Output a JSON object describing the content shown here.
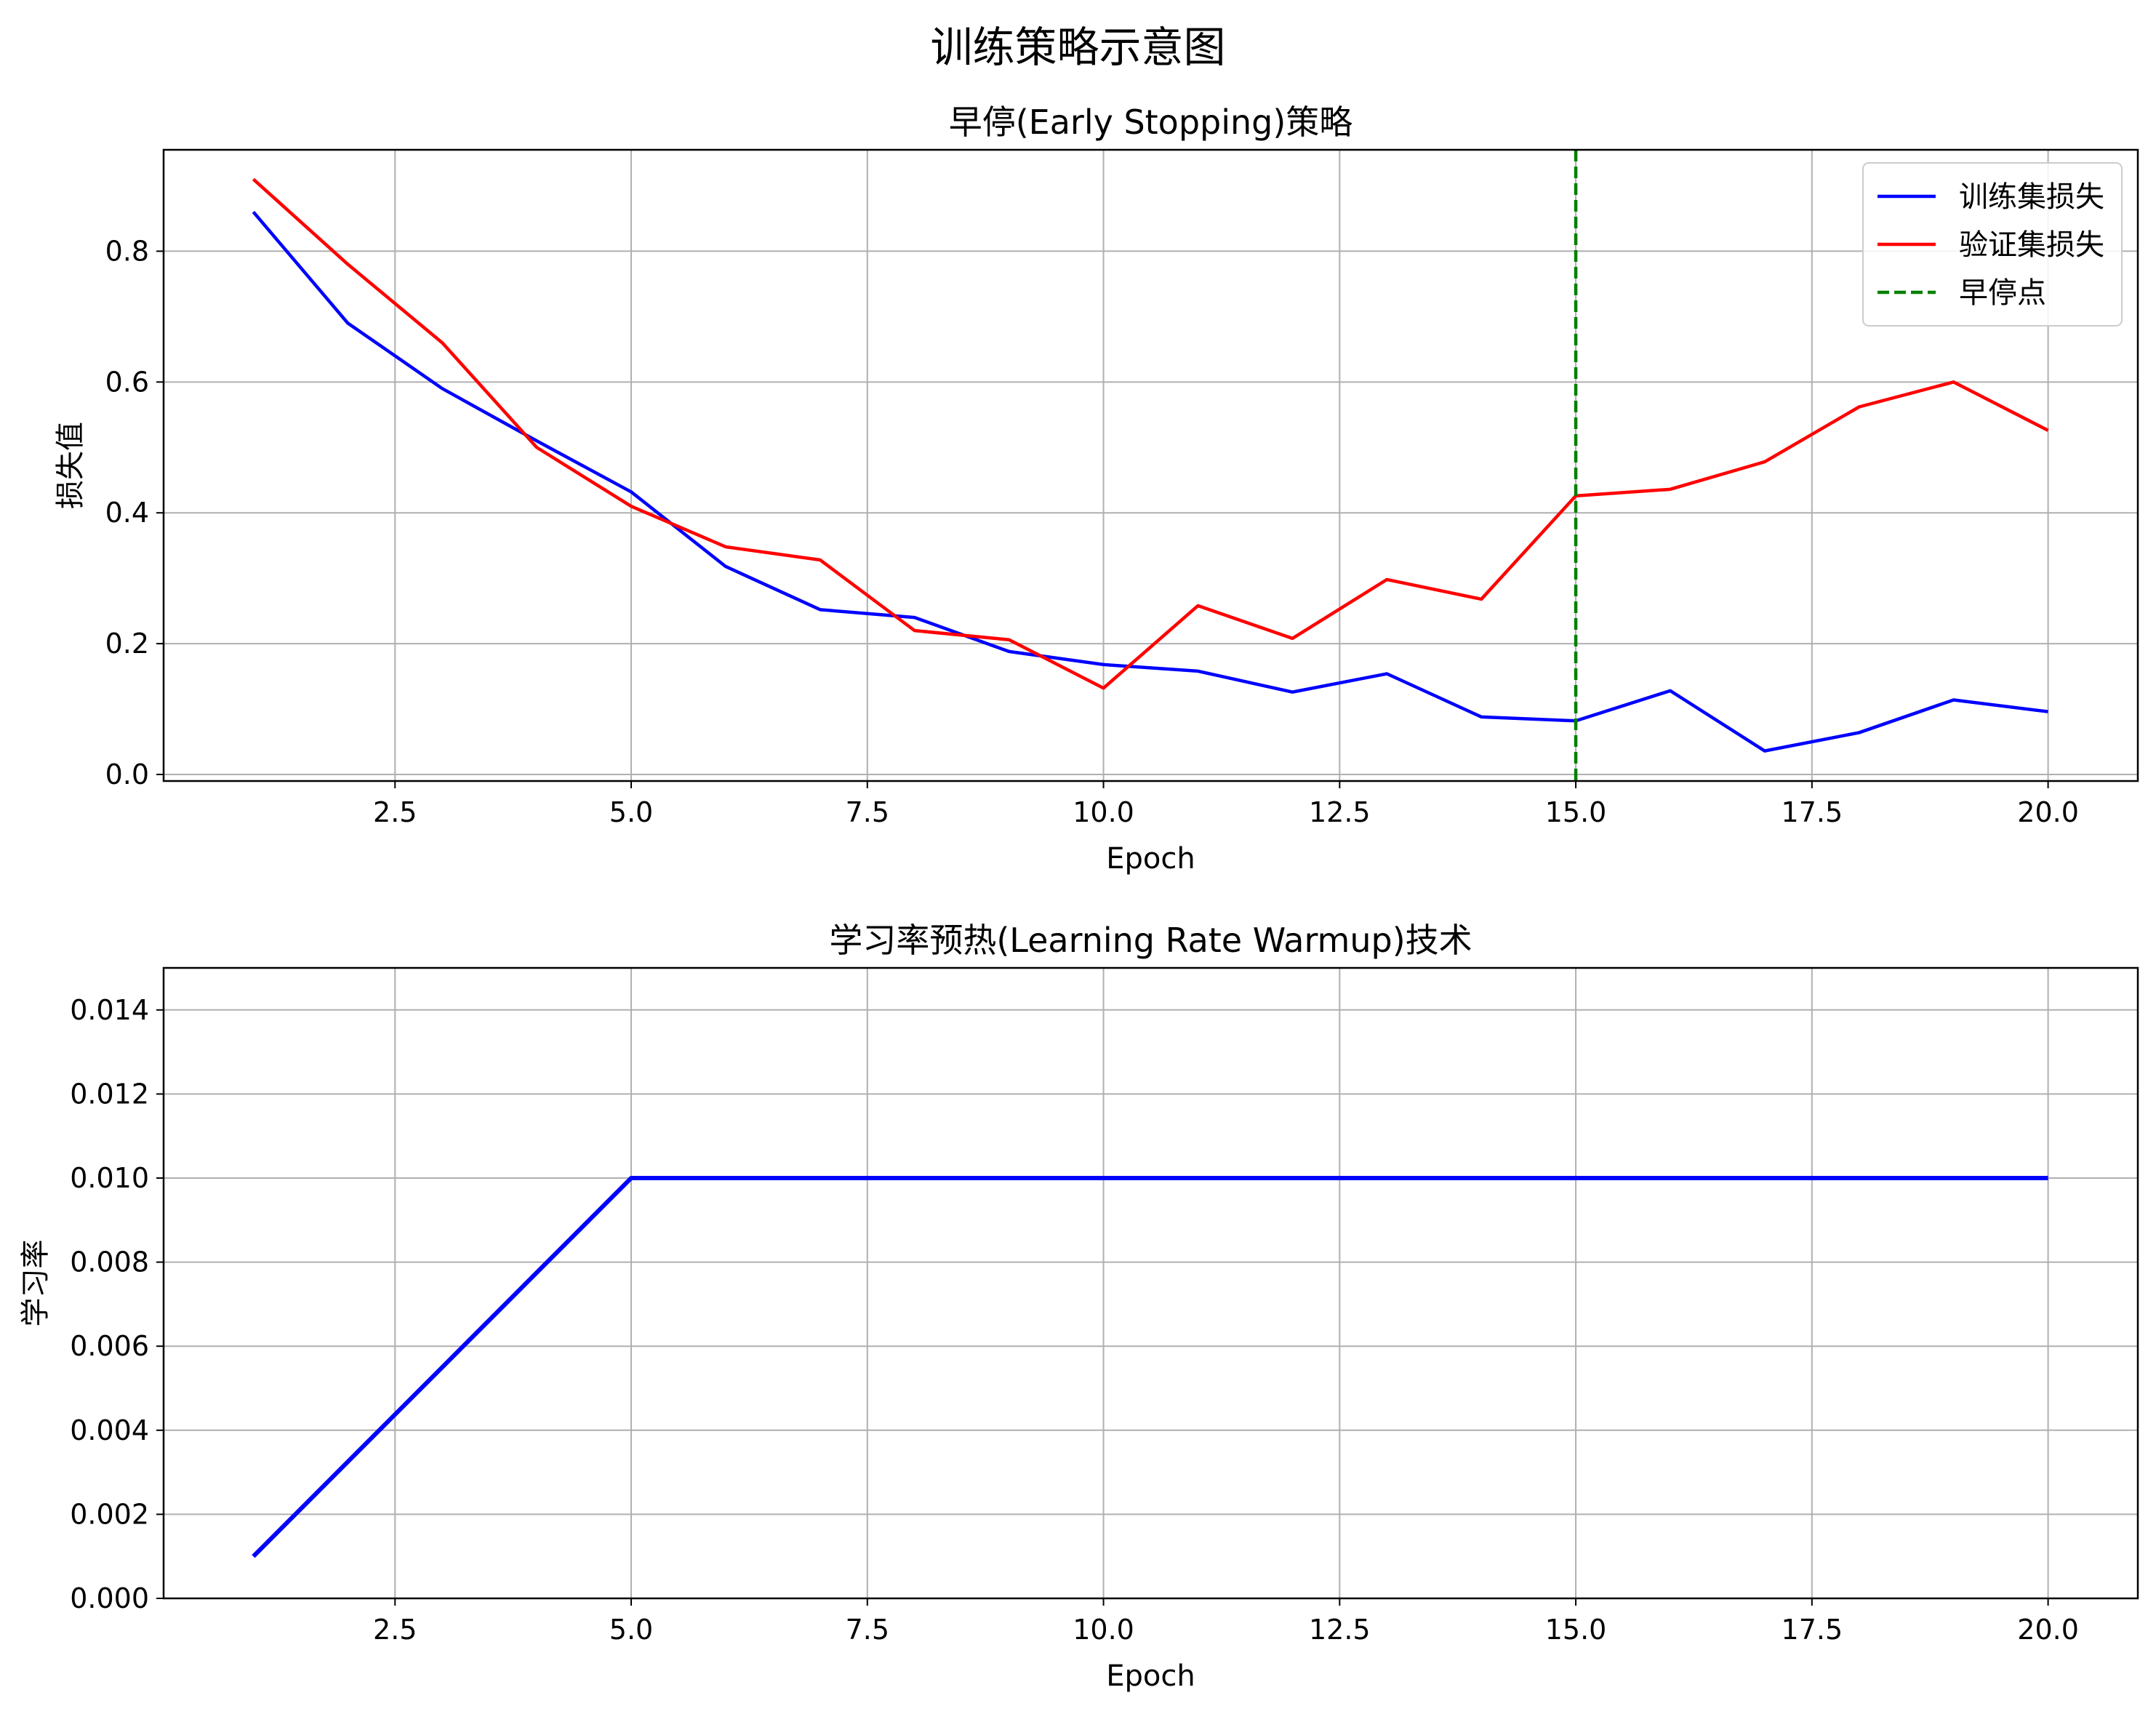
{
  "figure_title": "训练策略示意图",
  "colors": {
    "train": "#0000ff",
    "val": "#ff0000",
    "stop": "#008000",
    "grid": "#b0b0b0"
  },
  "chart_data": [
    {
      "type": "line",
      "title": "早停(Early Stopping)策略",
      "xlabel": "Epoch",
      "ylabel": "损失值",
      "xlim": [
        0.05,
        20.95
      ],
      "ylim": [
        -0.01,
        0.955
      ],
      "xticks": [
        2.5,
        5.0,
        7.5,
        10.0,
        12.5,
        15.0,
        17.5,
        20.0
      ],
      "xtick_labels": [
        "2.5",
        "5.0",
        "7.5",
        "10.0",
        "12.5",
        "15.0",
        "17.5",
        "20.0"
      ],
      "yticks": [
        0.0,
        0.2,
        0.4,
        0.6,
        0.8
      ],
      "ytick_labels": [
        "0.0",
        "0.2",
        "0.4",
        "0.6",
        "0.8"
      ],
      "grid": true,
      "legend_position": "top-right",
      "x": [
        1,
        2,
        3,
        4,
        5,
        6,
        7,
        8,
        9,
        10,
        11,
        12,
        13,
        14,
        15,
        16,
        17,
        18,
        19,
        20
      ],
      "series": [
        {
          "name": "训练集损失",
          "color": "#0000ff",
          "style": "solid",
          "values": [
            0.86,
            0.69,
            0.59,
            0.51,
            0.432,
            0.318,
            0.252,
            0.24,
            0.188,
            0.168,
            0.158,
            0.126,
            0.154,
            0.088,
            0.082,
            0.128,
            0.036,
            0.064,
            0.114,
            0.096
          ]
        },
        {
          "name": "验证集损失",
          "color": "#ff0000",
          "style": "solid",
          "values": [
            0.91,
            0.78,
            0.66,
            0.5,
            0.41,
            0.348,
            0.328,
            0.22,
            0.206,
            0.132,
            0.258,
            0.208,
            0.298,
            0.268,
            0.426,
            0.436,
            0.478,
            0.562,
            0.6,
            0.526
          ]
        }
      ],
      "vline": {
        "name": "早停点",
        "x": 15,
        "color": "#008000",
        "style": "dashed"
      }
    },
    {
      "type": "line",
      "title": "学习率预热(Learning Rate Warmup)技术",
      "xlabel": "Epoch",
      "ylabel": "学习率",
      "xlim": [
        0.05,
        20.95
      ],
      "ylim": [
        0.0,
        0.015
      ],
      "xticks": [
        2.5,
        5.0,
        7.5,
        10.0,
        12.5,
        15.0,
        17.5,
        20.0
      ],
      "xtick_labels": [
        "2.5",
        "5.0",
        "7.5",
        "10.0",
        "12.5",
        "15.0",
        "17.5",
        "20.0"
      ],
      "yticks": [
        0.0,
        0.002,
        0.004,
        0.006,
        0.008,
        0.01,
        0.012,
        0.014
      ],
      "ytick_labels": [
        "0.000",
        "0.002",
        "0.004",
        "0.006",
        "0.008",
        "0.010",
        "0.012",
        "0.014"
      ],
      "grid": true,
      "x": [
        1,
        2,
        3,
        4,
        5,
        6,
        7,
        8,
        9,
        10,
        11,
        12,
        13,
        14,
        15,
        16,
        17,
        18,
        19,
        20
      ],
      "series": [
        {
          "color": "#0000ff",
          "style": "solid",
          "values": [
            0.001,
            0.00325,
            0.0055,
            0.00775,
            0.01,
            0.01,
            0.01,
            0.01,
            0.01,
            0.01,
            0.01,
            0.01,
            0.01,
            0.01,
            0.01,
            0.01,
            0.01,
            0.01,
            0.01,
            0.01
          ]
        }
      ]
    }
  ]
}
